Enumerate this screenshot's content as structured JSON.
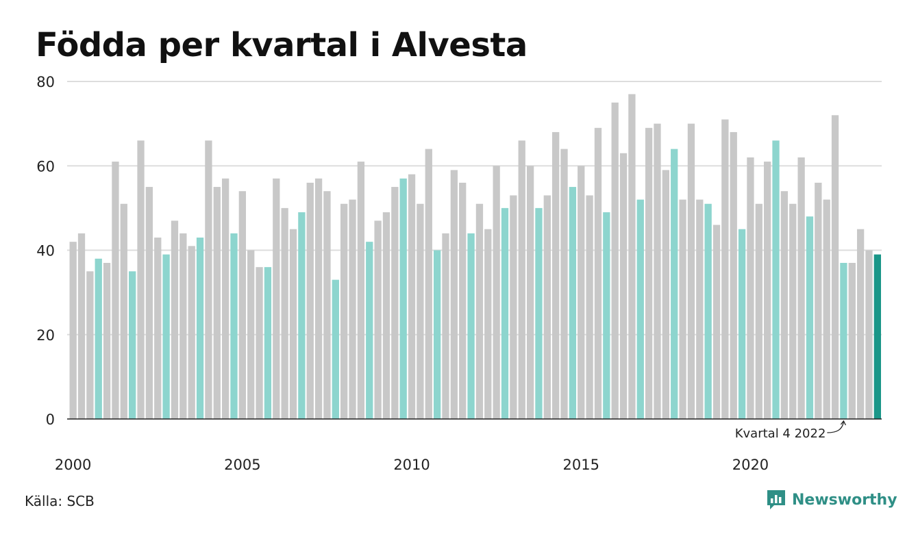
{
  "chart_data": {
    "type": "bar",
    "title": "Födda per kvartal i Alvesta",
    "x_tick_labels": [
      "2000",
      "2005",
      "2010",
      "2015",
      "2020"
    ],
    "y_tick_labels": [
      "0",
      "20",
      "40",
      "60",
      "80"
    ],
    "ylim": [
      0,
      80
    ],
    "grid": true,
    "periods_start": "2000 Q1",
    "values": [
      42,
      44,
      35,
      38,
      37,
      61,
      51,
      35,
      66,
      55,
      43,
      39,
      47,
      44,
      41,
      43,
      66,
      55,
      57,
      44,
      54,
      40,
      36,
      36,
      57,
      50,
      45,
      49,
      56,
      57,
      54,
      33,
      51,
      52,
      61,
      42,
      47,
      49,
      55,
      57,
      58,
      51,
      64,
      40,
      44,
      59,
      56,
      44,
      51,
      45,
      60,
      50,
      53,
      66,
      60,
      50,
      53,
      68,
      64,
      55,
      60,
      53,
      69,
      49,
      75,
      63,
      77,
      52,
      69,
      70,
      59,
      64,
      52,
      70,
      52,
      51,
      46,
      71,
      68,
      45,
      62,
      51,
      61,
      66,
      54,
      51,
      62,
      48,
      56,
      52,
      72,
      37,
      37,
      45,
      40,
      39
    ],
    "highlight_quarter": 4,
    "annotation": "Kvartal 4 2022",
    "colors": {
      "bar": "#c8c8c8",
      "highlight": "#8dd5ce",
      "latest": "#1a9688",
      "grid": "#dddddd",
      "axis": "#222222"
    }
  },
  "footer": {
    "source": "Källa: SCB",
    "logo_text": "Newsworthy",
    "logo_icon": "newsworthy-chart-bubble-icon"
  }
}
